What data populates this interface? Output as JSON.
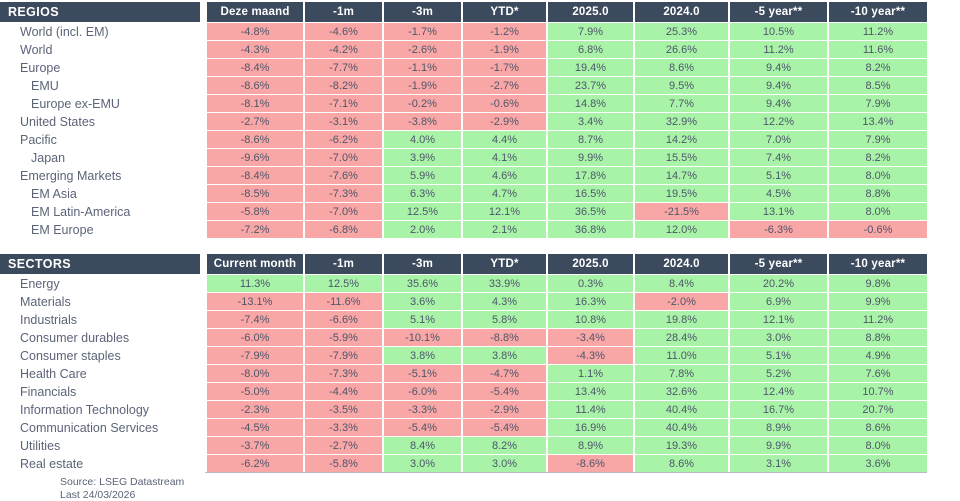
{
  "colors": {
    "header_bg": "#3c4a5e",
    "positive_bg": "#a9f3a9",
    "negative_bg": "#f9a6a6",
    "label_text": "#5b6478",
    "cell_text": "#4d5669"
  },
  "chart_data": [
    {
      "type": "table",
      "title": "REGIOS",
      "columns": [
        "Deze maand",
        "-1m",
        "-3m",
        "YTD*",
        "2025.0",
        "2024.0",
        "-5 year**",
        "-10 year**"
      ],
      "rows": [
        {
          "label": "World (incl. EM)",
          "indent": 1,
          "values": [
            "-4.8%",
            "-4.6%",
            "-1.7%",
            "-1.2%",
            "7.9%",
            "25.3%",
            "10.5%",
            "11.2%"
          ]
        },
        {
          "label": "World",
          "indent": 1,
          "values": [
            "-4.3%",
            "-4.2%",
            "-2.6%",
            "-1.9%",
            "6.8%",
            "26.6%",
            "11.2%",
            "11.6%"
          ]
        },
        {
          "label": "Europe",
          "indent": 1,
          "values": [
            "-8.4%",
            "-7.7%",
            "-1.1%",
            "-1.7%",
            "19.4%",
            "8.6%",
            "9.4%",
            "8.2%"
          ]
        },
        {
          "label": "EMU",
          "indent": 2,
          "values": [
            "-8.6%",
            "-8.2%",
            "-1.9%",
            "-2.7%",
            "23.7%",
            "9.5%",
            "9.4%",
            "8.5%"
          ]
        },
        {
          "label": "Europe ex-EMU",
          "indent": 2,
          "values": [
            "-8.1%",
            "-7.1%",
            "-0.2%",
            "-0.6%",
            "14.8%",
            "7.7%",
            "9.4%",
            "7.9%"
          ]
        },
        {
          "label": "United States",
          "indent": 1,
          "values": [
            "-2.7%",
            "-3.1%",
            "-3.8%",
            "-2.9%",
            "3.4%",
            "32.9%",
            "12.2%",
            "13.4%"
          ]
        },
        {
          "label": "Pacific",
          "indent": 1,
          "values": [
            "-8.6%",
            "-6.2%",
            "4.0%",
            "4.4%",
            "8.7%",
            "14.2%",
            "7.0%",
            "7.9%"
          ]
        },
        {
          "label": "Japan",
          "indent": 2,
          "values": [
            "-9.6%",
            "-7.0%",
            "3.9%",
            "4.1%",
            "9.9%",
            "15.5%",
            "7.4%",
            "8.2%"
          ]
        },
        {
          "label": "Emerging Markets",
          "indent": 1,
          "values": [
            "-8.4%",
            "-7.6%",
            "5.9%",
            "4.6%",
            "17.8%",
            "14.7%",
            "5.1%",
            "8.0%"
          ]
        },
        {
          "label": "EM Asia",
          "indent": 2,
          "values": [
            "-8.5%",
            "-7.3%",
            "6.3%",
            "4.7%",
            "16.5%",
            "19.5%",
            "4.5%",
            "8.8%"
          ]
        },
        {
          "label": "EM Latin-America",
          "indent": 2,
          "values": [
            "-5.8%",
            "-7.0%",
            "12.5%",
            "12.1%",
            "36.5%",
            "-21.5%",
            "13.1%",
            "8.0%"
          ]
        },
        {
          "label": "EM Europe",
          "indent": 2,
          "values": [
            "-7.2%",
            "-6.8%",
            "2.0%",
            "2.1%",
            "36.8%",
            "12.0%",
            "-6.3%",
            "-0.6%"
          ]
        }
      ]
    },
    {
      "type": "table",
      "title": "SECTORS",
      "columns": [
        "Current month",
        "-1m",
        "-3m",
        "YTD*",
        "2025.0",
        "2024.0",
        "-5 year**",
        "-10 year**"
      ],
      "rows": [
        {
          "label": "Energy",
          "indent": 1,
          "values": [
            "11.3%",
            "12.5%",
            "35.6%",
            "33.9%",
            "0.3%",
            "8.4%",
            "20.2%",
            "9.8%"
          ]
        },
        {
          "label": "Materials",
          "indent": 1,
          "values": [
            "-13.1%",
            "-11.6%",
            "3.6%",
            "4.3%",
            "16.3%",
            "-2.0%",
            "6.9%",
            "9.9%"
          ]
        },
        {
          "label": "Industrials",
          "indent": 1,
          "values": [
            "-7.4%",
            "-6.6%",
            "5.1%",
            "5.8%",
            "10.8%",
            "19.8%",
            "12.1%",
            "11.2%"
          ]
        },
        {
          "label": "Consumer durables",
          "indent": 1,
          "values": [
            "-6.0%",
            "-5.9%",
            "-10.1%",
            "-8.8%",
            "-3.4%",
            "28.4%",
            "3.0%",
            "8.8%"
          ]
        },
        {
          "label": "Consumer staples",
          "indent": 1,
          "values": [
            "-7.9%",
            "-7.9%",
            "3.8%",
            "3.8%",
            "-4.3%",
            "11.0%",
            "5.1%",
            "4.9%"
          ]
        },
        {
          "label": "Health Care",
          "indent": 1,
          "values": [
            "-8.0%",
            "-7.3%",
            "-5.1%",
            "-4.7%",
            "1.1%",
            "7.8%",
            "5.2%",
            "7.6%"
          ]
        },
        {
          "label": "Financials",
          "indent": 1,
          "values": [
            "-5.0%",
            "-4.4%",
            "-6.0%",
            "-5.4%",
            "13.4%",
            "32.6%",
            "12.4%",
            "10.7%"
          ]
        },
        {
          "label": "Information Technology",
          "indent": 1,
          "values": [
            "-2.3%",
            "-3.5%",
            "-3.3%",
            "-2.9%",
            "11.4%",
            "40.4%",
            "16.7%",
            "20.7%"
          ]
        },
        {
          "label": "Communication Services",
          "indent": 1,
          "values": [
            "-4.5%",
            "-3.3%",
            "-5.4%",
            "-5.4%",
            "16.9%",
            "40.4%",
            "8.9%",
            "8.6%"
          ]
        },
        {
          "label": "Utilities",
          "indent": 1,
          "values": [
            "-3.7%",
            "-2.7%",
            "8.4%",
            "8.2%",
            "8.9%",
            "19.3%",
            "9.9%",
            "8.0%"
          ]
        },
        {
          "label": "Real estate",
          "indent": 1,
          "values": [
            "-6.2%",
            "-5.8%",
            "3.0%",
            "3.0%",
            "-8.6%",
            "8.6%",
            "3.1%",
            "3.6%"
          ]
        }
      ]
    }
  ],
  "footer": {
    "source": "Source: LSEG Datastream",
    "last_updated": "Last 24/03/2026"
  }
}
